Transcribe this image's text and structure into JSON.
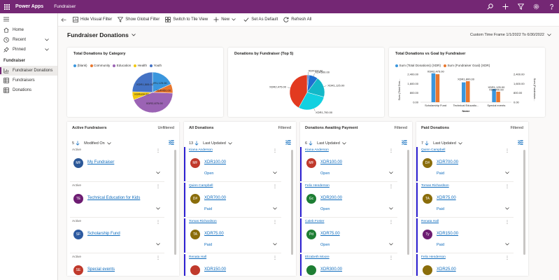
{
  "app": {
    "name": "Power Apps",
    "environment": "Fundraiser"
  },
  "commands": {
    "hide_visual_filter": "Hide Visual Filter",
    "show_global_filter": "Show Global Filter",
    "switch_tile_view": "Switch to Tile View",
    "new": "New",
    "set_default": "Set As Default",
    "refresh_all": "Refresh All"
  },
  "sidebar": {
    "home": "Home",
    "recent": "Recent",
    "pinned": "Pinned",
    "section": "Fundraiser",
    "items": [
      "Fundraiser Donations",
      "Fundraisers",
      "Donations"
    ]
  },
  "page": {
    "title": "Fundraiser Donations",
    "timeframe": "Custom Time Frame 1/1/2022 To 6/30/2022"
  },
  "accent": "#742774",
  "chart_data": [
    {
      "type": "pie",
      "title": "Total Donations by Category",
      "legend": [
        "(blank)",
        "Community",
        "Education",
        "Health",
        "Youth"
      ],
      "colors": [
        "#3a96dd",
        "#e8772e",
        "#9b63b4",
        "#f2c811",
        "#4472c4"
      ],
      "slices": [
        {
          "label": "XDR1,125.00",
          "value": 1125
        },
        {
          "label": "XDR450.00",
          "value": 450
        },
        {
          "label": "XDR2,675.00",
          "value": 2675
        },
        {
          "label": "XDR400.00",
          "value": 400
        },
        {
          "label": "XDR1,505.00",
          "value": 1505
        }
      ]
    },
    {
      "type": "pie",
      "title": "Donations by Fundraiser (Top 5)",
      "slices": [
        {
          "label": "XDR100.00",
          "value": 100,
          "color": "#4472c4"
        },
        {
          "label": "XDR500.00",
          "value": 500,
          "color": "#1f6fd1"
        },
        {
          "label": "XDR1,125.00",
          "value": 1125,
          "color": "#13b8c8"
        },
        {
          "label": "XDR1,700.00",
          "value": 1700,
          "color": "#12d0e0"
        },
        {
          "label": "XDR2,475.00",
          "value": 2475,
          "color": "#e23a20"
        }
      ]
    },
    {
      "type": "bar",
      "title": "Total Donations vs Goal by Fundraiser",
      "categories": [
        "Scholarship Fund",
        "Technical Educatio...",
        "Special events"
      ],
      "series": [
        {
          "name": "Sum (Total Donations) (XDR)",
          "values": [
            2475,
            1700,
            1125
          ],
          "color": "#3a96dd"
        },
        {
          "name": "Sum (Fundraiser Goal) (XDR)",
          "values": [
            2400,
            1800,
            900
          ],
          "color": "#e8772e"
        }
      ],
      "data_labels": [
        "XDR2,475.00",
        "XDR1,800.00",
        "XDR1,125.00",
        "XDR900.00"
      ],
      "ylabel": "Sum (Total Don...",
      "ylabel2": "Sum (Fundraiser...",
      "xlabel": "Name",
      "ylim": [
        0,
        2400
      ],
      "y_ticks": [
        "2,400.00",
        "1,600.00",
        "800.00",
        "0.00"
      ],
      "y2_ticks": [
        "2,400.00",
        "1,600.00",
        "800.00",
        "0.00"
      ]
    }
  ],
  "streams": [
    {
      "title": "Active Fundraisers",
      "filter": "Unfiltered",
      "count": "5",
      "sort": "Modified On",
      "items": [
        {
          "top": "Active",
          "name": "My Fundraiser",
          "initials": "MF",
          "color": "#2b5797"
        },
        {
          "top": "Active",
          "name": "Technical Education for Kids",
          "initials": "TE",
          "color": "#6d1c72"
        },
        {
          "top": "Active",
          "name": "Scholarship Fund",
          "initials": "SF",
          "color": "#2d5aa0"
        },
        {
          "top": "Active",
          "name": "Special events",
          "initials": "SE",
          "color": "#c0392b"
        }
      ]
    },
    {
      "title": "All Donations",
      "filter": "Filtered",
      "count": "13",
      "sort": "Last Updated",
      "items": [
        {
          "top": "Kiana Anderson",
          "name": "XDR100.00",
          "status": "Open",
          "initials": "MF",
          "color": "#c0392b"
        },
        {
          "top": "Quinn Campbell",
          "name": "XDR700.00",
          "status": "Paid",
          "initials": "D#",
          "color": "#8a6d0b"
        },
        {
          "top": "Tomas Richardson",
          "name": "XDR75.00",
          "status": "Paid",
          "initials": "TA",
          "color": "#8a6d0b"
        },
        {
          "top": "Renata Hall",
          "name": "XDR150.00",
          "status": "",
          "initials": "",
          "color": "#c0392b"
        }
      ]
    },
    {
      "title": "Donations Awaiting Payment",
      "filter": "Filtered",
      "count": "6",
      "sort": "Last Updated",
      "items": [
        {
          "top": "Kiana Anderson",
          "name": "XDR100.00",
          "status": "Open",
          "initials": "MF",
          "color": "#c0392b"
        },
        {
          "top": "Felix Henderson",
          "name": "XDR200.00",
          "status": "Open",
          "initials": "Gc",
          "color": "#1e7e34"
        },
        {
          "top": "Caleb Foster",
          "name": "XDR75.00",
          "status": "Open",
          "initials": "Pd",
          "color": "#1e7e34"
        },
        {
          "top": "Elizabeth Moore",
          "name": "XDR300.00",
          "status": "",
          "initials": "",
          "color": "#1e7e34"
        }
      ]
    },
    {
      "title": "Paid Donations",
      "filter": "Filtered",
      "count": "7",
      "sort": "Last Updated",
      "items": [
        {
          "top": "Quinn Campbell",
          "name": "XDR700.00",
          "status": "Paid",
          "initials": "D#",
          "color": "#8a6d0b"
        },
        {
          "top": "Tomas Richardson",
          "name": "XDR75.00",
          "status": "Paid",
          "initials": "TA",
          "color": "#8a6d0b"
        },
        {
          "top": "Renata Hall",
          "name": "XDR150.00",
          "status": "Paid",
          "initials": "Ty",
          "color": "#6d1c72"
        },
        {
          "top": "Felix Henderson",
          "name": "XDR25.00",
          "status": "",
          "initials": "",
          "color": "#8a6d0b"
        }
      ]
    }
  ]
}
